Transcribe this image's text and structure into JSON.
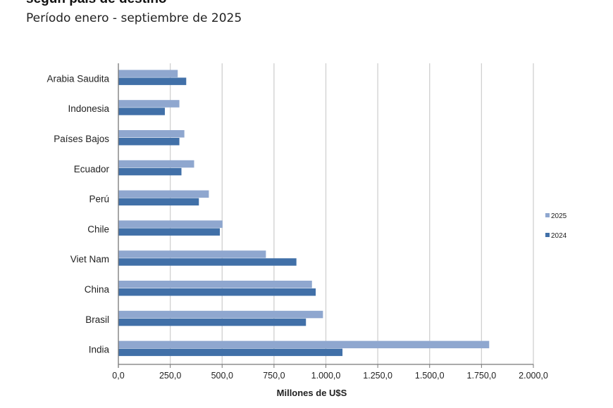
{
  "title": "según país de destino",
  "subtitle": "Período enero - septiembre de 2025",
  "chart_data": {
    "type": "bar",
    "orientation": "horizontal",
    "categories": [
      "Arabia Saudita",
      "Indonesia",
      "Países Bajos",
      "Ecuador",
      "Perú",
      "Chile",
      "Viet Nam",
      "China",
      "Brasil",
      "India"
    ],
    "series": [
      {
        "name": "2025",
        "color": "#8fa7cf",
        "values": [
          286,
          294,
          318,
          365,
          436,
          502,
          711,
          933,
          986,
          1787
        ]
      },
      {
        "name": "2024",
        "color": "#4170a8",
        "values": [
          327,
          224,
          294,
          304,
          388,
          489,
          858,
          951,
          904,
          1080
        ]
      }
    ],
    "xlabel": "Millones de U$S",
    "xlim": [
      0,
      2000
    ],
    "xticks": [
      0,
      250,
      500,
      750,
      1000,
      1250,
      1500,
      1750,
      2000
    ],
    "xtick_labels": [
      "0,0",
      "250,0",
      "500,0",
      "750,0",
      "1.000,0",
      "1.250,0",
      "1.500,0",
      "1.750,0",
      "2.000,0"
    ],
    "grid": true,
    "legend_position": "right"
  }
}
